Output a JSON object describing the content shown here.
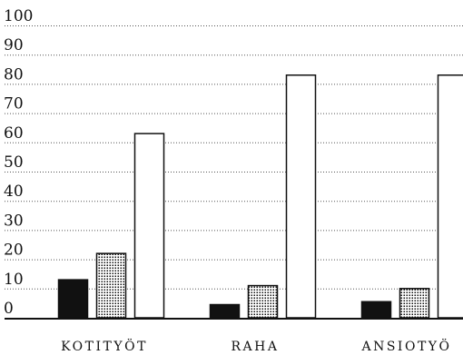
{
  "chart_data": {
    "type": "bar",
    "categories": [
      "KOTITYÖT",
      "RAHA",
      "ANSIOTYÖ"
    ],
    "series": [
      {
        "fill": "solid-black",
        "values": [
          13,
          4.5,
          5.5
        ]
      },
      {
        "fill": "dotted",
        "values": [
          22,
          11,
          10
        ]
      },
      {
        "fill": "white",
        "values": [
          63,
          83,
          83
        ]
      }
    ],
    "yticks": [
      0,
      10,
      20,
      30,
      40,
      50,
      60,
      70,
      80,
      90,
      100
    ],
    "ylim": [
      0,
      100
    ],
    "grid": true,
    "legend": "none",
    "colors": {
      "axis": "#111111",
      "bar_solid": "#111111",
      "bar_white": "#ffffff",
      "dot": "#111111"
    }
  }
}
